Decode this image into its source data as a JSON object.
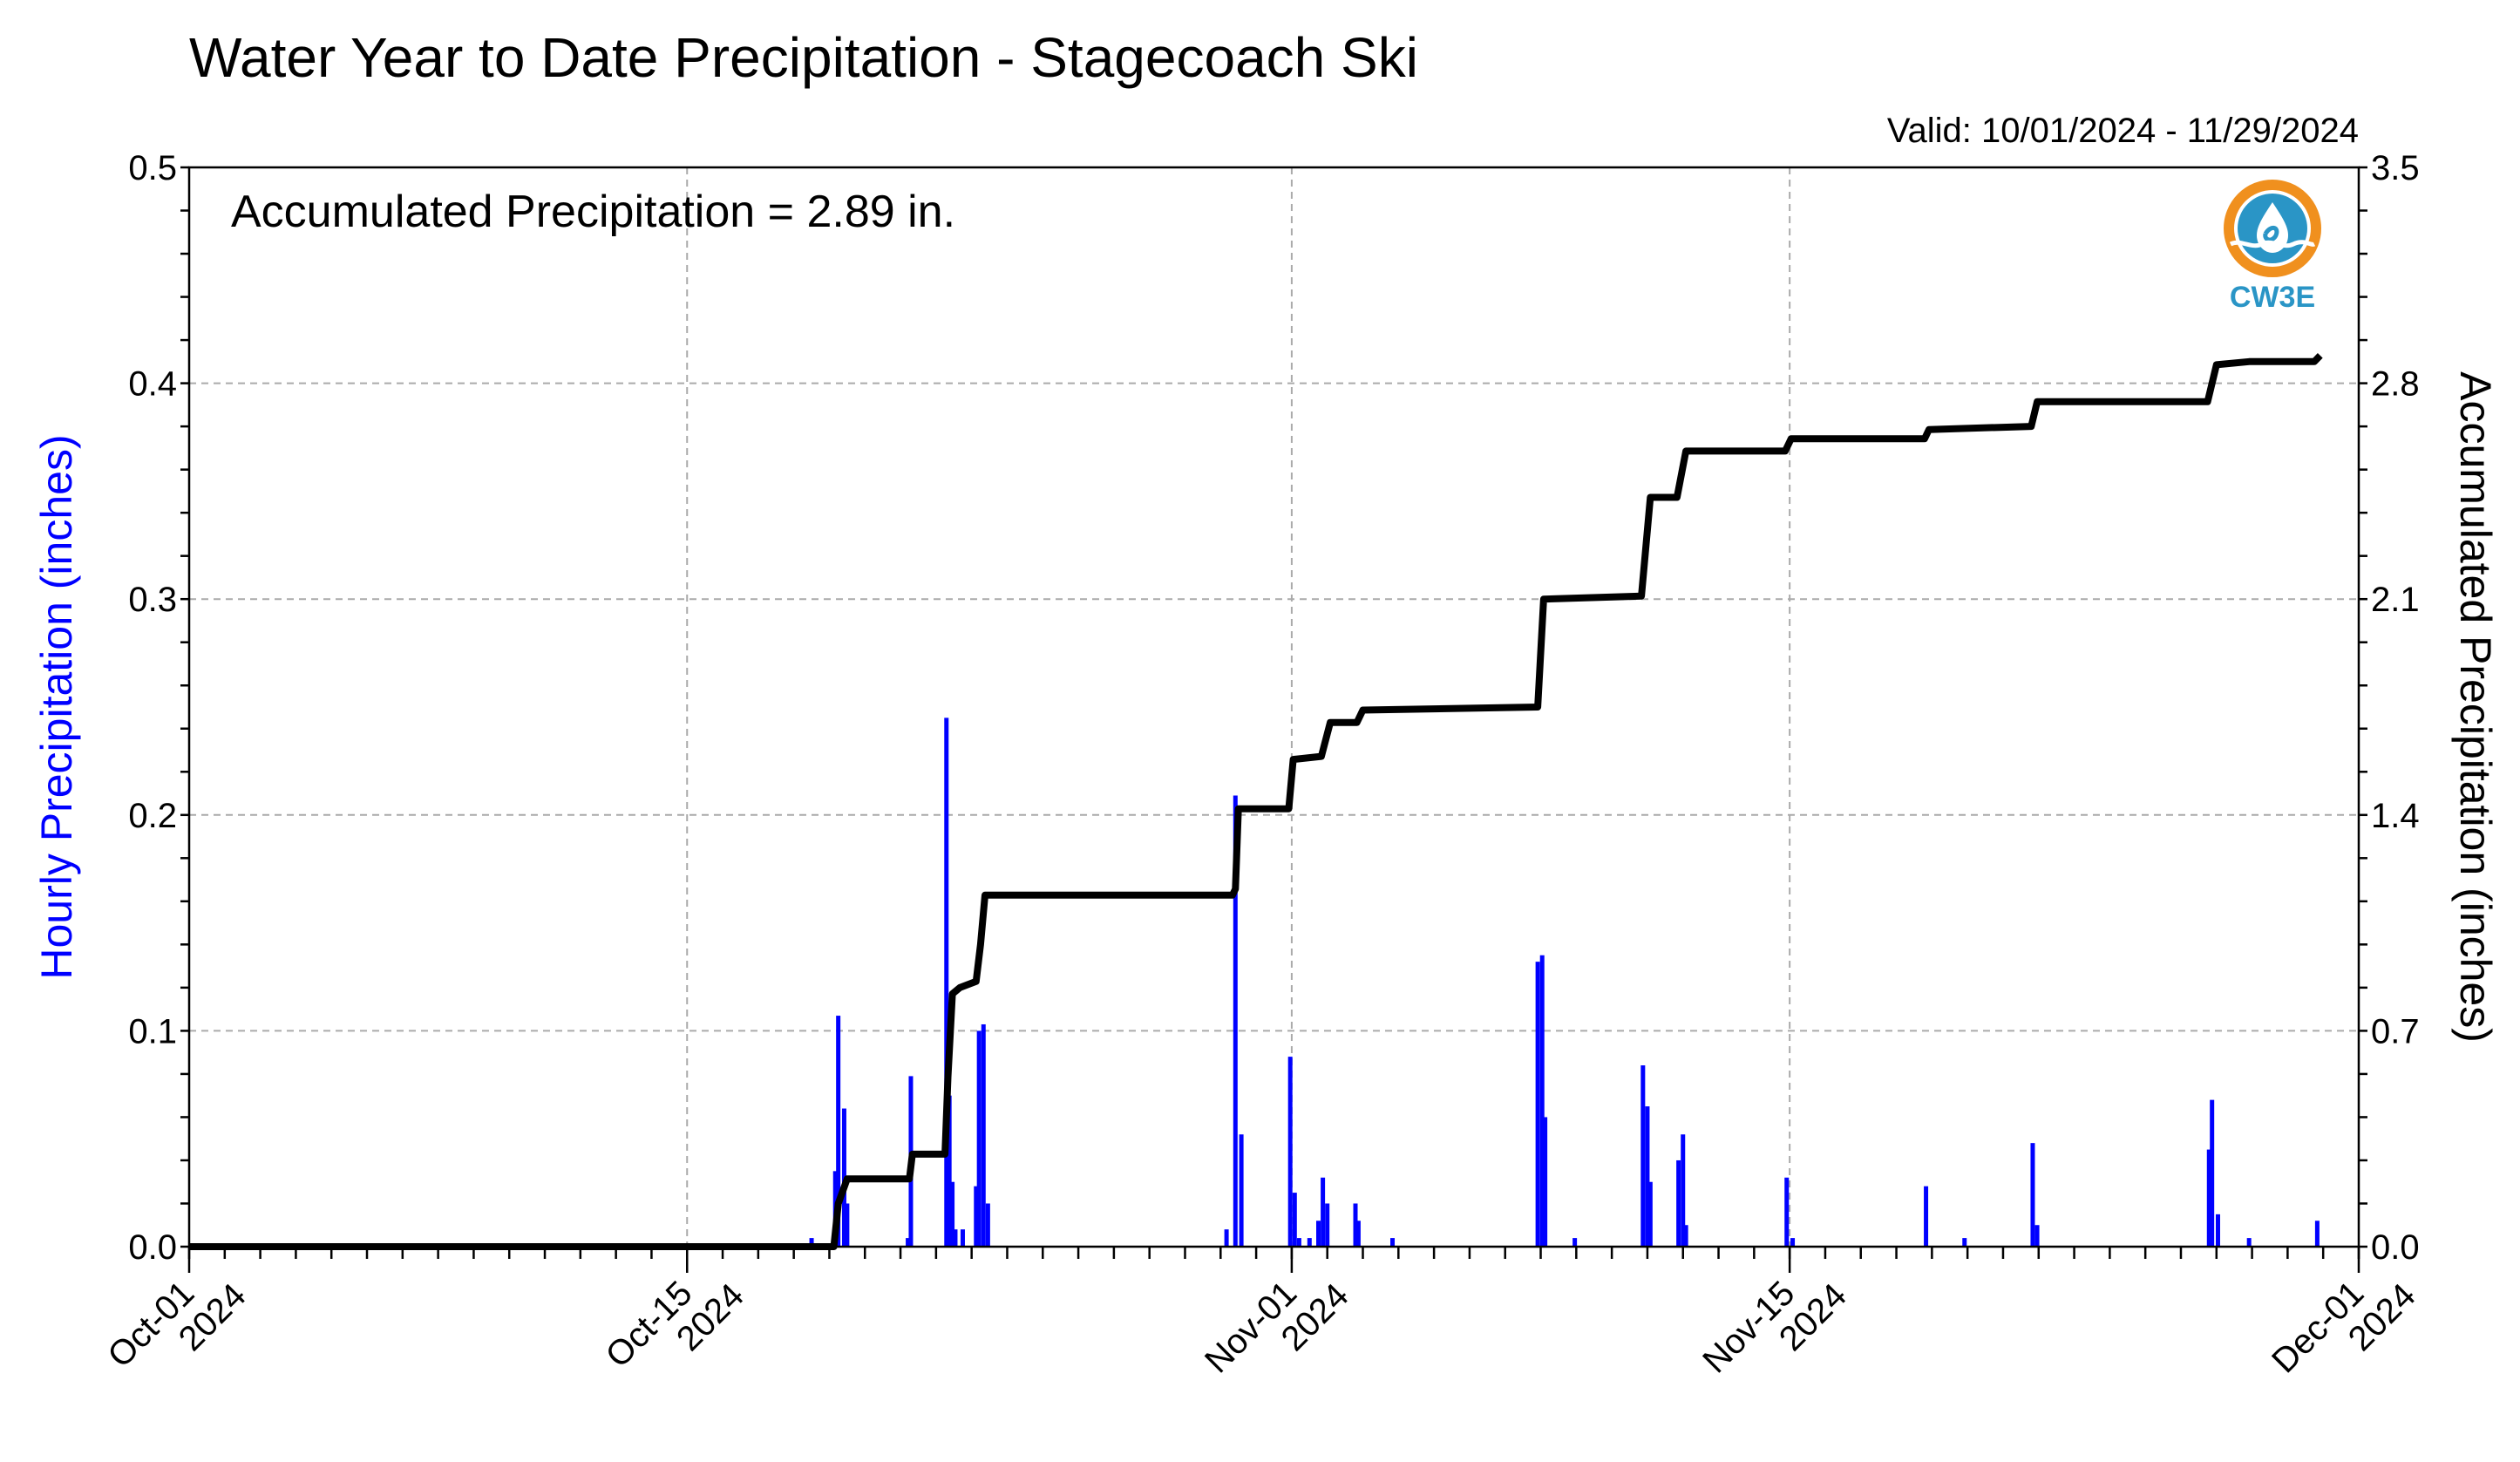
{
  "chart_data": {
    "type": "bar+line",
    "title": "Water Year to Date Precipitation - Stagecoach Ski",
    "valid_range": "Valid: 10/01/2024 - 11/29/2024",
    "annotation": "Accumulated Precipitation = 2.89 in.",
    "xlim": [
      "2024-10-01",
      "2024-12-01"
    ],
    "x_ticks": [
      {
        "date": "2024-10-01",
        "line1": "Oct-01",
        "line2": "2024"
      },
      {
        "date": "2024-10-15",
        "line1": "Oct-15",
        "line2": "2024"
      },
      {
        "date": "2024-11-01",
        "line1": "Nov-01",
        "line2": "2024"
      },
      {
        "date": "2024-11-15",
        "line1": "Nov-15",
        "line2": "2024"
      },
      {
        "date": "2024-12-01",
        "line1": "Dec-01",
        "line2": "2024"
      }
    ],
    "y_left": {
      "label": "Hourly Precipitation (inches)",
      "lim": [
        0,
        0.5
      ],
      "ticks": [
        "0.0",
        "0.1",
        "0.2",
        "0.3",
        "0.4",
        "0.5"
      ],
      "color": "#0000ff"
    },
    "y_right": {
      "label": "Accumulated Precipitation (inches)",
      "lim": [
        0,
        3.5
      ],
      "ticks": [
        "0.0",
        "0.7",
        "1.4",
        "2.1",
        "2.8",
        "3.5"
      ],
      "color": "#000000"
    },
    "grid": true,
    "series": [
      {
        "name": "Hourly Precipitation",
        "kind": "bar",
        "color": "#0000ff",
        "axis": "left",
        "points": [
          [
            "2024-10-18T12:00",
            0.004
          ],
          [
            "2024-10-19T04:00",
            0.035
          ],
          [
            "2024-10-19T06:00",
            0.107
          ],
          [
            "2024-10-19T10:00",
            0.064
          ],
          [
            "2024-10-19T12:00",
            0.02
          ],
          [
            "2024-10-21T05:00",
            0.004
          ],
          [
            "2024-10-21T07:00",
            0.079
          ],
          [
            "2024-10-22T07:00",
            0.245
          ],
          [
            "2024-10-22T09:00",
            0.07
          ],
          [
            "2024-10-22T11:00",
            0.03
          ],
          [
            "2024-10-22T13:00",
            0.008
          ],
          [
            "2024-10-22T18:00",
            0.008
          ],
          [
            "2024-10-23T03:00",
            0.028
          ],
          [
            "2024-10-23T05:00",
            0.1
          ],
          [
            "2024-10-23T08:00",
            0.103
          ],
          [
            "2024-10-23T11:00",
            0.02
          ],
          [
            "2024-10-30T04:00",
            0.008
          ],
          [
            "2024-10-30T10:00",
            0.209
          ],
          [
            "2024-10-30T14:00",
            0.052
          ],
          [
            "2024-10-31T23:00",
            0.088
          ],
          [
            "2024-11-01T02:00",
            0.025
          ],
          [
            "2024-11-01T05:00",
            0.004
          ],
          [
            "2024-11-01T12:00",
            0.004
          ],
          [
            "2024-11-01T18:00",
            0.012
          ],
          [
            "2024-11-01T21:00",
            0.032
          ],
          [
            "2024-11-02T00:00",
            0.02
          ],
          [
            "2024-11-02T19:00",
            0.02
          ],
          [
            "2024-11-02T21:00",
            0.012
          ],
          [
            "2024-11-03T20:00",
            0.004
          ],
          [
            "2024-11-07T22:00",
            0.132
          ],
          [
            "2024-11-08T01:00",
            0.135
          ],
          [
            "2024-11-08T03:00",
            0.06
          ],
          [
            "2024-11-08T23:00",
            0.004
          ],
          [
            "2024-11-10T21:00",
            0.084
          ],
          [
            "2024-11-11T00:00",
            0.065
          ],
          [
            "2024-11-11T02:00",
            0.03
          ],
          [
            "2024-11-11T21:00",
            0.04
          ],
          [
            "2024-11-12T00:00",
            0.052
          ],
          [
            "2024-11-12T02:00",
            0.01
          ],
          [
            "2024-11-14T22:00",
            0.032
          ],
          [
            "2024-11-15T02:00",
            0.004
          ],
          [
            "2024-11-18T20:00",
            0.028
          ],
          [
            "2024-11-19T22:00",
            0.004
          ],
          [
            "2024-11-21T20:00",
            0.048
          ],
          [
            "2024-11-21T23:00",
            0.01
          ],
          [
            "2024-11-26T19:00",
            0.045
          ],
          [
            "2024-11-26T21:00",
            0.068
          ],
          [
            "2024-11-27T01:00",
            0.015
          ],
          [
            "2024-11-27T22:00",
            0.004
          ],
          [
            "2024-11-29T20:00",
            0.012
          ]
        ]
      },
      {
        "name": "Accumulated Precipitation",
        "kind": "line-step",
        "color": "#000000",
        "axis": "right",
        "points": [
          [
            "2024-10-01T00:00",
            0.0
          ],
          [
            "2024-10-19T03:00",
            0.0
          ],
          [
            "2024-10-19T06:00",
            0.14
          ],
          [
            "2024-10-19T12:00",
            0.22
          ],
          [
            "2024-10-21T06:00",
            0.22
          ],
          [
            "2024-10-21T08:00",
            0.3
          ],
          [
            "2024-10-22T06:00",
            0.3
          ],
          [
            "2024-10-22T08:00",
            0.55
          ],
          [
            "2024-10-22T11:00",
            0.82
          ],
          [
            "2024-10-22T16:00",
            0.84
          ],
          [
            "2024-10-23T03:00",
            0.86
          ],
          [
            "2024-10-23T06:00",
            0.98
          ],
          [
            "2024-10-23T09:00",
            1.14
          ],
          [
            "2024-10-30T08:00",
            1.14
          ],
          [
            "2024-10-30T10:00",
            1.16
          ],
          [
            "2024-10-30T12:00",
            1.42
          ],
          [
            "2024-10-31T22:00",
            1.42
          ],
          [
            "2024-11-01T01:00",
            1.58
          ],
          [
            "2024-11-01T20:00",
            1.59
          ],
          [
            "2024-11-02T02:00",
            1.7
          ],
          [
            "2024-11-02T20:00",
            1.7
          ],
          [
            "2024-11-03T00:00",
            1.74
          ],
          [
            "2024-11-07T22:00",
            1.75
          ],
          [
            "2024-11-08T02:00",
            2.1
          ],
          [
            "2024-11-10T20:00",
            2.11
          ],
          [
            "2024-11-11T02:00",
            2.43
          ],
          [
            "2024-11-11T20:00",
            2.43
          ],
          [
            "2024-11-12T02:00",
            2.58
          ],
          [
            "2024-11-14T21:00",
            2.58
          ],
          [
            "2024-11-15T01:00",
            2.62
          ],
          [
            "2024-11-18T19:00",
            2.62
          ],
          [
            "2024-11-18T22:00",
            2.65
          ],
          [
            "2024-11-21T19:00",
            2.66
          ],
          [
            "2024-11-21T23:00",
            2.74
          ],
          [
            "2024-11-26T18:00",
            2.74
          ],
          [
            "2024-11-27T00:00",
            2.86
          ],
          [
            "2024-11-27T22:00",
            2.87
          ],
          [
            "2024-11-29T18:00",
            2.87
          ],
          [
            "2024-11-29T22:00",
            2.89
          ]
        ]
      }
    ]
  },
  "logo": {
    "text": "CW3E",
    "ring_color": "#f0901e",
    "wave_color": "#2a95c6"
  }
}
